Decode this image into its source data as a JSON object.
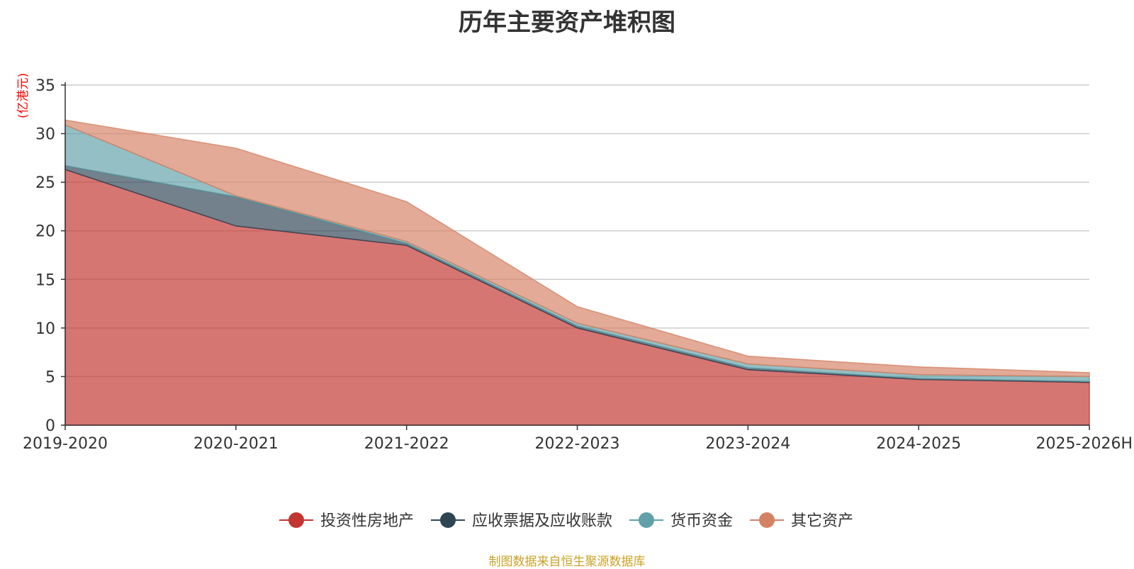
{
  "chart_data": {
    "type": "area",
    "stacked": true,
    "title": "历年主要资产堆积图",
    "unit_label": "(亿港元)",
    "categories": [
      "2019-2020",
      "2020-2021",
      "2021-2022",
      "2022-2023",
      "2023-2024",
      "2024-2025",
      "2025-2026H"
    ],
    "ylim": [
      0,
      35
    ],
    "yticks": [
      0,
      5,
      10,
      15,
      20,
      25,
      30,
      35
    ],
    "grid": true,
    "legend_position": "bottom-center",
    "series": [
      {
        "name": "投资性房地产",
        "color": "#c23531",
        "values": [
          26.3,
          20.5,
          18.5,
          10.0,
          5.7,
          4.7,
          4.4
        ]
      },
      {
        "name": "应收票据及应收账款",
        "color": "#2f4554",
        "values": [
          0.4,
          3.0,
          0.2,
          0.2,
          0.2,
          0.1,
          0.1
        ]
      },
      {
        "name": "货币资金",
        "color": "#61a0a8",
        "values": [
          4.2,
          0.1,
          0.2,
          0.3,
          0.4,
          0.4,
          0.5
        ]
      },
      {
        "name": "其它资产",
        "color": "#d48265",
        "values": [
          0.5,
          4.9,
          4.1,
          1.7,
          0.8,
          0.8,
          0.4
        ]
      }
    ]
  },
  "source_text": "制图数据来自恒生聚源数据库",
  "colors": {
    "unit": "#ff0000",
    "source": "#c9a227",
    "grid": "#cccccc",
    "axis": "#333333"
  }
}
